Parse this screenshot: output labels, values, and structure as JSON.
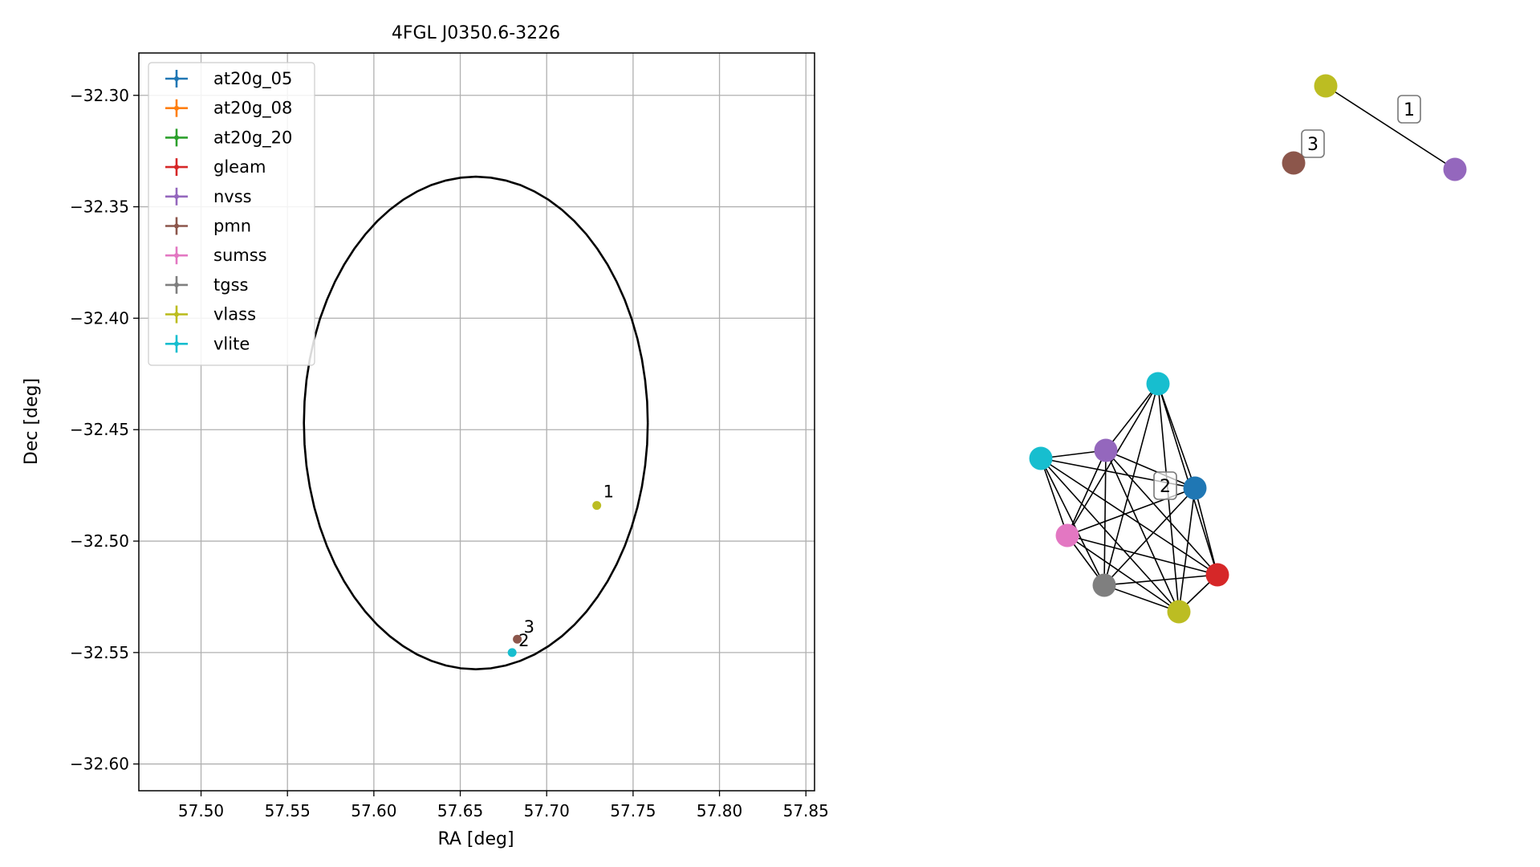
{
  "chart_data": [
    {
      "type": "scatter",
      "title": "4FGL J0350.6-3226",
      "xlabel": "RA [deg]",
      "ylabel": "Dec [deg]",
      "xlim": [
        57.464,
        57.855
      ],
      "ylim": [
        -32.612,
        -32.281
      ],
      "x_ticks": [
        {
          "value": 57.5,
          "label": "57.50"
        },
        {
          "value": 57.55,
          "label": "57.55"
        },
        {
          "value": 57.6,
          "label": "57.60"
        },
        {
          "value": 57.65,
          "label": "57.65"
        },
        {
          "value": 57.7,
          "label": "57.70"
        },
        {
          "value": 57.75,
          "label": "57.75"
        },
        {
          "value": 57.8,
          "label": "57.80"
        },
        {
          "value": 57.85,
          "label": "57.85"
        }
      ],
      "y_ticks": [
        {
          "value": -32.3,
          "label": "−32.30"
        },
        {
          "value": -32.35,
          "label": "−32.35"
        },
        {
          "value": -32.4,
          "label": "−32.40"
        },
        {
          "value": -32.45,
          "label": "−32.45"
        },
        {
          "value": -32.5,
          "label": "−32.50"
        },
        {
          "value": -32.55,
          "label": "−32.55"
        },
        {
          "value": -32.6,
          "label": "−32.60"
        }
      ],
      "grid": true,
      "legend_position": "top-left",
      "legend": [
        {
          "name": "at20g_05",
          "color": "#1f77b4"
        },
        {
          "name": "at20g_08",
          "color": "#ff7f0e"
        },
        {
          "name": "at20g_20",
          "color": "#2ca02c"
        },
        {
          "name": "gleam",
          "color": "#d62728"
        },
        {
          "name": "nvss",
          "color": "#9467bd"
        },
        {
          "name": "pmn",
          "color": "#8c564b"
        },
        {
          "name": "sumss",
          "color": "#e377c2"
        },
        {
          "name": "tgss",
          "color": "#7f7f7f"
        },
        {
          "name": "vlass",
          "color": "#bcbd22"
        },
        {
          "name": "vlite",
          "color": "#17becf"
        }
      ],
      "ellipse": {
        "center": [
          57.659,
          -32.447
        ],
        "radius_x": 0.0995,
        "radius_y": 0.1105
      },
      "points": [
        {
          "x": 57.729,
          "y": -32.484,
          "color": "#bcbd22",
          "label": "1"
        },
        {
          "x": 57.683,
          "y": -32.544,
          "color": "#8c564b",
          "label": "3"
        },
        {
          "x": 57.68,
          "y": -32.55,
          "color": "#17becf",
          "label": "2"
        }
      ]
    },
    {
      "type": "network",
      "nodes": [
        {
          "id": "c1_vlass",
          "color": "#bcbd22"
        },
        {
          "id": "c1_nvss",
          "color": "#9467bd"
        },
        {
          "id": "c3_pmn",
          "color": "#8c564b"
        },
        {
          "id": "c2_vlite_top",
          "color": "#17becf"
        },
        {
          "id": "c2_vlite_left",
          "color": "#17becf"
        },
        {
          "id": "c2_nvss",
          "color": "#9467bd"
        },
        {
          "id": "c2_at20g",
          "color": "#1f77b4"
        },
        {
          "id": "c2_sumss",
          "color": "#e377c2"
        },
        {
          "id": "c2_gleam",
          "color": "#d62728"
        },
        {
          "id": "c2_tgss",
          "color": "#7f7f7f"
        },
        {
          "id": "c2_vlass",
          "color": "#bcbd22"
        }
      ],
      "cluster_labels": [
        "1",
        "3",
        "2"
      ]
    }
  ]
}
